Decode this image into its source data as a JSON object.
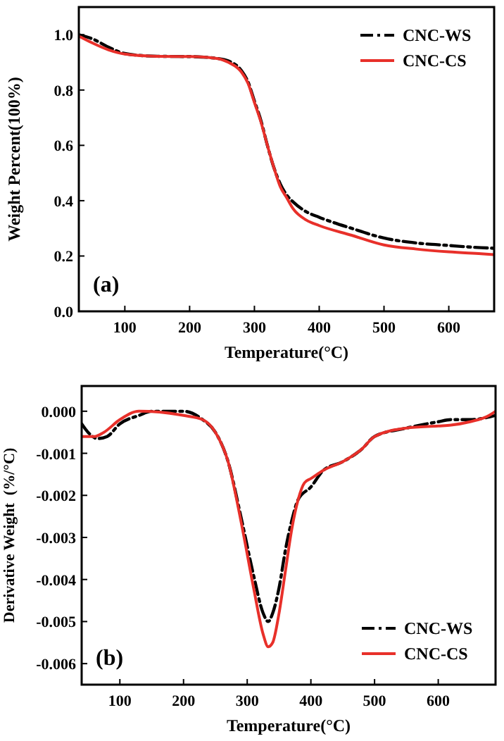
{
  "chart_data": [
    {
      "type": "line",
      "xlabel": "Temperature(°C)",
      "ylabel": "Weight Percent(100%)",
      "annotations": [
        "(a)"
      ],
      "xlim": [
        29,
        670
      ],
      "ylim": [
        0,
        1.1
      ],
      "xticks": [
        100,
        200,
        300,
        400,
        500,
        600
      ],
      "yticks": [
        {
          "value": 0,
          "label": "0.0"
        },
        {
          "value": 0.2,
          "label": "0.2"
        },
        {
          "value": 0.4,
          "label": "0.4"
        },
        {
          "value": 0.6,
          "label": "0.6"
        },
        {
          "value": 0.8,
          "label": "0.8"
        },
        {
          "value": 1,
          "label": "1.0"
        }
      ],
      "legend": "top right",
      "grid": false,
      "series": [
        {
          "name": "CNC-WS",
          "color": "#000000",
          "line_style": "dashed",
          "x": [
            29,
            50,
            75,
            100,
            150,
            200,
            240,
            260,
            280,
            290,
            300,
            310,
            320,
            330,
            340,
            350,
            360,
            380,
            400,
            450,
            500,
            550,
            600,
            650,
            670
          ],
          "values": [
            1.0,
            0.985,
            0.955,
            0.932,
            0.922,
            0.921,
            0.915,
            0.905,
            0.87,
            0.83,
            0.76,
            0.69,
            0.6,
            0.52,
            0.46,
            0.42,
            0.395,
            0.36,
            0.34,
            0.3,
            0.265,
            0.247,
            0.238,
            0.23,
            0.228
          ]
        },
        {
          "name": "CNC-CS",
          "color": "#e8302a",
          "line_style": "solid",
          "x": [
            29,
            50,
            75,
            100,
            150,
            200,
            240,
            260,
            280,
            290,
            300,
            310,
            320,
            330,
            340,
            350,
            360,
            380,
            400,
            450,
            500,
            550,
            600,
            650,
            670
          ],
          "values": [
            0.995,
            0.97,
            0.945,
            0.93,
            0.922,
            0.921,
            0.915,
            0.9,
            0.865,
            0.825,
            0.755,
            0.685,
            0.6,
            0.52,
            0.45,
            0.41,
            0.37,
            0.33,
            0.31,
            0.275,
            0.24,
            0.225,
            0.215,
            0.208,
            0.205
          ]
        }
      ]
    },
    {
      "type": "line",
      "xlabel": "Temperature(°C)",
      "ylabel": "Derivative Weight  (%/°C)",
      "annotations": [
        "(b)"
      ],
      "xlim": [
        40,
        690
      ],
      "ylim": [
        -0.0065,
        0.0006
      ],
      "xticks": [
        100,
        200,
        300,
        400,
        500,
        600
      ],
      "yticks": [
        {
          "value": 0,
          "label": "0.000"
        },
        {
          "value": -0.001,
          "label": "-0.001"
        },
        {
          "value": -0.002,
          "label": "-0.002"
        },
        {
          "value": -0.003,
          "label": "-0.003"
        },
        {
          "value": -0.004,
          "label": "-0.004"
        },
        {
          "value": -0.005,
          "label": "-0.005"
        },
        {
          "value": -0.006,
          "label": "-0.006"
        }
      ],
      "legend": "bottom right",
      "grid": false,
      "series": [
        {
          "name": "CNC-WS",
          "color": "#000000",
          "line_style": "dashed",
          "x": [
            40,
            50,
            65,
            80,
            100,
            130,
            150,
            200,
            230,
            250,
            270,
            290,
            310,
            325,
            333,
            340,
            350,
            360,
            370,
            380,
            400,
            420,
            450,
            480,
            500,
            550,
            600,
            620,
            650,
            690
          ],
          "values": [
            -0.0003,
            -0.0005,
            -0.00065,
            -0.0006,
            -0.0003,
            -0.0001,
            0,
            0,
            -0.0002,
            -0.0005,
            -0.0012,
            -0.0025,
            -0.0039,
            -0.0048,
            -0.005,
            -0.0048,
            -0.0042,
            -0.0033,
            -0.0026,
            -0.0021,
            -0.0018,
            -0.0014,
            -0.0012,
            -0.0009,
            -0.0006,
            -0.0004,
            -0.00025,
            -0.0002,
            -0.0002,
            -0.0001
          ]
        },
        {
          "name": "CNC-CS",
          "color": "#e8302a",
          "line_style": "solid",
          "x": [
            40,
            60,
            75,
            100,
            130,
            200,
            230,
            250,
            270,
            290,
            310,
            325,
            333,
            340,
            350,
            360,
            370,
            380,
            390,
            400,
            420,
            450,
            480,
            500,
            550,
            600,
            620,
            650,
            680,
            690
          ],
          "values": [
            -0.0006,
            -0.0006,
            -0.0005,
            -0.0002,
            0,
            -0.0001,
            -0.0002,
            -0.0005,
            -0.0012,
            -0.0026,
            -0.0042,
            -0.0053,
            -0.0056,
            -0.0055,
            -0.0048,
            -0.0038,
            -0.0028,
            -0.0021,
            -0.0017,
            -0.0016,
            -0.0014,
            -0.0012,
            -0.0009,
            -0.0006,
            -0.0004,
            -0.00035,
            -0.00033,
            -0.00025,
            -0.0001,
            0
          ]
        }
      ]
    }
  ]
}
